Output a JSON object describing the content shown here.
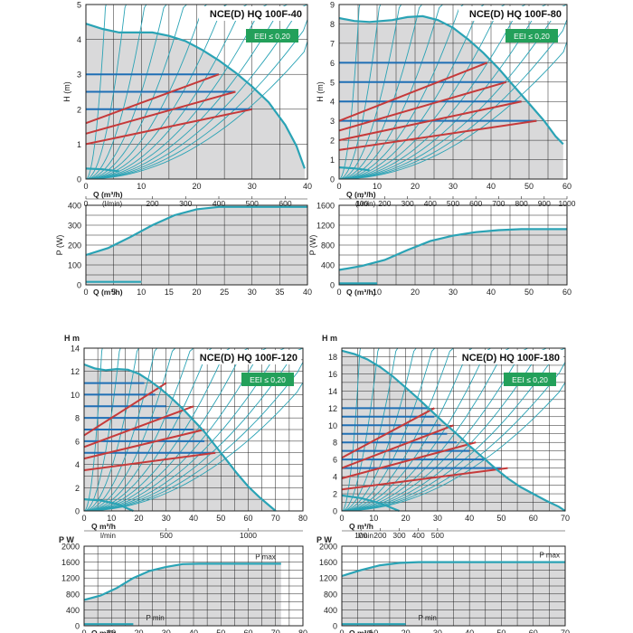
{
  "colors": {
    "curve": "#2aa3b5",
    "envelope": "#2aa3b5",
    "fill": "#d9d9da",
    "blue_line": "#1f6fb5",
    "red_line": "#c63a3a",
    "grid": "#222222",
    "badge_bg": "#23a05a",
    "badge_text": "#ffffff",
    "title_text": "#111111"
  },
  "chart_data": [
    {
      "id": "100f40",
      "type": "line",
      "title": "NCE(D) HQ 100F-40",
      "badge": "EEI ≤ 0,20",
      "ylabel": "H (m)",
      "xlabel": "Q (m³/h)",
      "xlim": [
        0,
        40
      ],
      "ylim": [
        0,
        5
      ],
      "x_ticks": [
        0,
        10,
        20,
        30,
        40
      ],
      "y_ticks": [
        0,
        1,
        2,
        3,
        4,
        5
      ],
      "secondary_label": "(l/min)",
      "secondary_ticks": [
        {
          "label": "0",
          "x": 0
        },
        {
          "label": "200",
          "x": 12
        },
        {
          "label": "300",
          "x": 18
        },
        {
          "label": "400",
          "x": 24
        },
        {
          "label": "500",
          "x": 30
        },
        {
          "label": "600",
          "x": 36
        }
      ],
      "envelope": [
        [
          0,
          4.45
        ],
        [
          3,
          4.3
        ],
        [
          6,
          4.2
        ],
        [
          9,
          4.2
        ],
        [
          12,
          4.2
        ],
        [
          15,
          4.1
        ],
        [
          18,
          3.95
        ],
        [
          21,
          3.7
        ],
        [
          24,
          3.4
        ],
        [
          27,
          3.05
        ],
        [
          30,
          2.65
        ],
        [
          33,
          2.2
        ],
        [
          36,
          1.55
        ],
        [
          38,
          0.95
        ],
        [
          39.5,
          0.3
        ]
      ],
      "blue_levels": [
        2,
        2.5,
        3
      ],
      "blue_end": [
        30,
        27,
        24
      ],
      "red_lines": [
        [
          [
            0,
            1
          ],
          [
            30,
            2
          ]
        ],
        [
          [
            0,
            1.3
          ],
          [
            27,
            2.5
          ]
        ],
        [
          [
            0,
            1.6
          ],
          [
            24,
            3
          ]
        ]
      ],
      "min_curve": [
        [
          0,
          0.3
        ],
        [
          3,
          0.28
        ],
        [
          6,
          0.22
        ]
      ],
      "fan_count": 13,
      "power": {
        "ylabel": "P (W)",
        "xlabel": "Q (m³/h)",
        "xlim": [
          0,
          40
        ],
        "ylim": [
          0,
          400
        ],
        "x_ticks": [
          0,
          5,
          10,
          15,
          20,
          25,
          30,
          35,
          40
        ],
        "y_ticks": [
          0,
          100,
          200,
          300,
          400
        ],
        "max_curve": [
          [
            0,
            150
          ],
          [
            4,
            185
          ],
          [
            8,
            240
          ],
          [
            12,
            300
          ],
          [
            16,
            350
          ],
          [
            20,
            380
          ],
          [
            24,
            392
          ],
          [
            40,
            392
          ]
        ],
        "min_curve": [
          [
            0,
            15
          ],
          [
            10,
            15
          ]
        ],
        "pmax_label": "",
        "pmin_label": ""
      }
    },
    {
      "id": "100f80",
      "type": "line",
      "title": "NCE(D) HQ 100F-80",
      "badge": "EEI ≤ 0,20",
      "ylabel": "H (m)",
      "xlabel": "Q (m³/h)",
      "xlim": [
        0,
        60
      ],
      "ylim": [
        0,
        9
      ],
      "x_ticks": [
        0,
        10,
        20,
        30,
        40,
        50,
        60
      ],
      "y_ticks": [
        0,
        1,
        2,
        3,
        4,
        5,
        6,
        7,
        8,
        9
      ],
      "secondary_label": "(l/min)",
      "secondary_ticks": [
        {
          "label": "100",
          "x": 6
        },
        {
          "label": "200",
          "x": 12
        },
        {
          "label": "300",
          "x": 18
        },
        {
          "label": "400",
          "x": 24
        },
        {
          "label": "500",
          "x": 30
        },
        {
          "label": "600",
          "x": 36
        },
        {
          "label": "700",
          "x": 42
        },
        {
          "label": "800",
          "x": 48
        },
        {
          "label": "900",
          "x": 54
        },
        {
          "label": "1000",
          "x": 60
        }
      ],
      "envelope": [
        [
          0,
          8.3
        ],
        [
          4,
          8.15
        ],
        [
          8,
          8.1
        ],
        [
          14,
          8.2
        ],
        [
          18,
          8.35
        ],
        [
          22,
          8.4
        ],
        [
          26,
          8.2
        ],
        [
          30,
          7.8
        ],
        [
          34,
          7.2
        ],
        [
          38,
          6.5
        ],
        [
          42,
          5.7
        ],
        [
          46,
          4.8
        ],
        [
          50,
          3.9
        ],
        [
          54,
          3.0
        ],
        [
          57,
          2.2
        ],
        [
          59,
          1.8
        ]
      ],
      "blue_levels": [
        3,
        4,
        5,
        6
      ],
      "blue_end": [
        52,
        48,
        44,
        39
      ],
      "red_lines": [
        [
          [
            0,
            1.5
          ],
          [
            52,
            3
          ]
        ],
        [
          [
            0,
            2
          ],
          [
            48,
            4
          ]
        ],
        [
          [
            0,
            2.5
          ],
          [
            44,
            5
          ]
        ],
        [
          [
            0,
            3
          ],
          [
            39,
            6
          ]
        ]
      ],
      "min_curve": [
        [
          0,
          0.6
        ],
        [
          4,
          0.55
        ],
        [
          8,
          0.45
        ]
      ],
      "fan_count": 13,
      "power": {
        "ylabel": "P (W)",
        "xlabel": "Q (m³/h)",
        "xlim": [
          0,
          60
        ],
        "ylim": [
          0,
          1600
        ],
        "x_ticks": [
          0,
          10,
          20,
          30,
          40,
          50,
          60
        ],
        "y_ticks": [
          0,
          400,
          800,
          1200,
          1600
        ],
        "max_curve": [
          [
            0,
            300
          ],
          [
            6,
            380
          ],
          [
            12,
            500
          ],
          [
            18,
            700
          ],
          [
            24,
            880
          ],
          [
            30,
            990
          ],
          [
            36,
            1060
          ],
          [
            42,
            1100
          ],
          [
            48,
            1120
          ],
          [
            60,
            1120
          ]
        ],
        "min_curve": [
          [
            0,
            30
          ],
          [
            10,
            30
          ]
        ],
        "pmax_label": "",
        "pmin_label": ""
      }
    },
    {
      "id": "100f120",
      "type": "line",
      "title": "NCE(D) HQ 100F-120",
      "badge": "EEI ≤ 0,20",
      "ylabel": "H m",
      "xlabel": "Q m³/h",
      "xlim": [
        0,
        80
      ],
      "ylim": [
        0,
        14
      ],
      "x_ticks": [
        0,
        10,
        20,
        30,
        40,
        50,
        60,
        70,
        80
      ],
      "y_ticks": [
        0,
        2,
        4,
        6,
        8,
        10,
        12,
        14
      ],
      "secondary_label": "l/min",
      "secondary_ticks": [
        {
          "label": "500",
          "x": 30
        },
        {
          "label": "1000",
          "x": 60
        }
      ],
      "envelope": [
        [
          0,
          12.6
        ],
        [
          4,
          12.25
        ],
        [
          8,
          12.1
        ],
        [
          12,
          12.2
        ],
        [
          16,
          12.15
        ],
        [
          20,
          11.8
        ],
        [
          24,
          11.2
        ],
        [
          28,
          10.5
        ],
        [
          32,
          9.7
        ],
        [
          36,
          8.8
        ],
        [
          40,
          7.8
        ],
        [
          44,
          6.8
        ],
        [
          48,
          5.6
        ],
        [
          52,
          4.4
        ],
        [
          56,
          3.2
        ],
        [
          60,
          2.1
        ],
        [
          64,
          1.2
        ],
        [
          68,
          0.4
        ],
        [
          70,
          0
        ]
      ],
      "blue_levels": [
        5,
        6,
        7,
        8,
        9,
        10,
        11
      ],
      "blue_end": [
        48,
        44,
        40,
        35,
        30,
        26,
        22
      ],
      "red_lines": [
        [
          [
            0,
            3.5
          ],
          [
            48,
            5
          ]
        ],
        [
          [
            0,
            4.5
          ],
          [
            44,
            7
          ]
        ],
        [
          [
            0,
            5.5
          ],
          [
            40,
            9
          ]
        ],
        [
          [
            0,
            6.5
          ],
          [
            30,
            11
          ]
        ]
      ],
      "min_curve": [
        [
          0,
          1
        ],
        [
          6,
          0.9
        ],
        [
          12,
          0.6
        ],
        [
          18,
          0
        ]
      ],
      "fan_count": 14,
      "power": {
        "ylabel": "P W",
        "xlabel": "Q m³/h",
        "xlim": [
          0,
          80
        ],
        "ylim": [
          0,
          2000
        ],
        "x_ticks": [
          0,
          10,
          20,
          30,
          40,
          50,
          60,
          70,
          80
        ],
        "y_ticks": [
          0,
          400,
          800,
          1200,
          1600,
          2000
        ],
        "max_curve": [
          [
            0,
            650
          ],
          [
            6,
            760
          ],
          [
            12,
            950
          ],
          [
            18,
            1200
          ],
          [
            24,
            1380
          ],
          [
            30,
            1480
          ],
          [
            36,
            1550
          ],
          [
            42,
            1560
          ],
          [
            72,
            1560
          ]
        ],
        "min_curve": [
          [
            0,
            40
          ],
          [
            18,
            40
          ]
        ],
        "pmax_label": "P max",
        "pmin_label": "P min"
      }
    },
    {
      "id": "100f180",
      "type": "line",
      "title": "NCE(D) HQ 100F-180",
      "badge": "EEI ≤ 0,20",
      "ylabel": "H m",
      "xlabel": "Q m³/h",
      "xlim": [
        0,
        70
      ],
      "ylim": [
        0,
        19
      ],
      "x_ticks": [
        0,
        10,
        20,
        30,
        40,
        50,
        60,
        70
      ],
      "y_ticks": [
        0,
        2,
        4,
        6,
        8,
        10,
        12,
        14,
        16,
        18
      ],
      "secondary_label": "l/min",
      "secondary_ticks": [
        {
          "label": "100",
          "x": 6
        },
        {
          "label": "200",
          "x": 12
        },
        {
          "label": "300",
          "x": 18
        },
        {
          "label": "400",
          "x": 24
        },
        {
          "label": "500",
          "x": 30
        }
      ],
      "envelope": [
        [
          0,
          18.7
        ],
        [
          4,
          18.3
        ],
        [
          8,
          17.7
        ],
        [
          12,
          16.8
        ],
        [
          16,
          15.7
        ],
        [
          20,
          14.4
        ],
        [
          24,
          13.1
        ],
        [
          28,
          11.7
        ],
        [
          32,
          10.3
        ],
        [
          36,
          9.0
        ],
        [
          40,
          7.6
        ],
        [
          44,
          6.3
        ],
        [
          48,
          5.0
        ],
        [
          52,
          3.8
        ],
        [
          56,
          2.8
        ],
        [
          60,
          2
        ],
        [
          64,
          1.2
        ],
        [
          68,
          0.5
        ],
        [
          70,
          0
        ]
      ],
      "blue_levels": [
        5,
        6,
        7,
        8,
        9,
        10,
        11,
        12
      ],
      "blue_end": [
        50,
        45,
        40,
        36,
        33,
        31,
        29,
        27
      ],
      "red_lines": [
        [
          [
            0,
            2.5
          ],
          [
            52,
            5
          ]
        ],
        [
          [
            0,
            3.8
          ],
          [
            42,
            8
          ]
        ],
        [
          [
            0,
            5
          ],
          [
            35,
            10
          ]
        ],
        [
          [
            0,
            6.2
          ],
          [
            29,
            12
          ]
        ]
      ],
      "min_curve": [
        [
          0,
          1.8
        ],
        [
          6,
          1.5
        ],
        [
          12,
          0.9
        ],
        [
          18,
          0
        ]
      ],
      "fan_count": 14,
      "power": {
        "ylabel": "P W",
        "xlabel": "Q m³/h",
        "xlim": [
          0,
          70
        ],
        "ylim": [
          0,
          2000
        ],
        "x_ticks": [
          0,
          10,
          20,
          30,
          40,
          50,
          60,
          70
        ],
        "y_ticks": [
          0,
          400,
          800,
          1200,
          1600,
          2000
        ],
        "max_curve": [
          [
            0,
            1250
          ],
          [
            6,
            1400
          ],
          [
            12,
            1520
          ],
          [
            18,
            1580
          ],
          [
            24,
            1600
          ],
          [
            70,
            1600
          ]
        ],
        "min_curve": [
          [
            0,
            40
          ],
          [
            20,
            40
          ]
        ],
        "pmax_label": "P max",
        "pmin_label": "P min"
      }
    }
  ]
}
